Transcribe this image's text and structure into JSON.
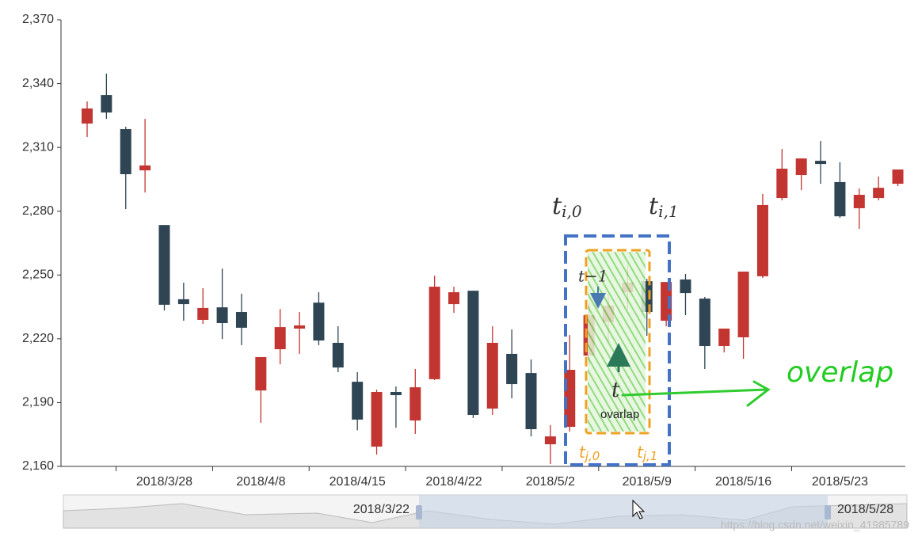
{
  "chart_data": {
    "type": "candlestick",
    "categories": [
      null,
      null,
      null,
      null,
      "2018/3/28",
      null,
      null,
      null,
      null,
      "2018/4/8",
      null,
      null,
      null,
      null,
      "2018/4/15",
      null,
      null,
      null,
      null,
      "2018/4/22",
      null,
      null,
      null,
      null,
      "2018/5/2",
      null,
      null,
      null,
      null,
      "2018/5/9",
      null,
      null,
      null,
      null,
      "2018/5/16",
      null,
      null,
      null,
      null,
      "2018/5/23",
      null,
      null,
      null
    ],
    "open": [
      2321.2,
      2334.6,
      2318.6,
      2299.2,
      2273.5,
      2238.6,
      2228.9,
      2234.8,
      2232.6,
      2195.7,
      2215.1,
      2224.8,
      2237,
      2218.1,
      2199.8,
      2169.3,
      2195,
      2181.6,
      2201,
      2236.3,
      2242.6,
      2187.2,
      2212.9,
      2203.9,
      2170.4,
      2178.6,
      2212.1,
      2227.8,
      2241.9,
      2247.1,
      2228.5,
      2247.9,
      2238.9,
      2216.6,
      2220.7,
      2249.4,
      2286.2,
      2297,
      2303.7,
      2293.7,
      2281.4,
      2286.2,
      2292.9
    ],
    "close": [
      2328.3,
      2326.4,
      2297.4,
      2301.5,
      2236,
      2236.3,
      2234.5,
      2227.4,
      2225.2,
      2211.4,
      2225.5,
      2226.3,
      2219.2,
      2206.5,
      2182,
      2195,
      2193.5,
      2197.2,
      2244.5,
      2241.9,
      2184.2,
      2218.1,
      2198.7,
      2177.5,
      2174.1,
      2205.4,
      2231.1,
      2235.6,
      2246.4,
      2232.6,
      2246.7,
      2241.5,
      2216.6,
      2224.8,
      2251.6,
      2282.9,
      2300,
      2304.8,
      2302.2,
      2277.6,
      2287.7,
      2291,
      2299.6
    ],
    "low": [
      2314.9,
      2323.4,
      2281,
      2288.8,
      2233.3,
      2228.5,
      2227,
      2219.9,
      2217,
      2180.5,
      2208,
      2212.9,
      2217,
      2204.3,
      2177,
      2165.6,
      2178.2,
      2175.3,
      2200.6,
      2232.2,
      2182.7,
      2184.2,
      2192,
      2174.1,
      2161.1,
      2176.4,
      2207.7,
      2218.5,
      2234,
      2221.4,
      2225.9,
      2231.1,
      2205.8,
      2213.6,
      2210.6,
      2248.6,
      2285.1,
      2289.9,
      2292.9,
      2276.9,
      2271.7,
      2285.1,
      2291.8
    ],
    "high": [
      2331.6,
      2344.7,
      2319.7,
      2323.4,
      2273.5,
      2246.4,
      2243.8,
      2253,
      2241.2,
      2211.4,
      2234,
      2232.6,
      2241.9,
      2225.9,
      2204.3,
      2196.1,
      2197.6,
      2205.8,
      2249.7,
      2244.5,
      2242.6,
      2225.9,
      2224.4,
      2210.3,
      2179.4,
      2221.8,
      2236.7,
      2240.8,
      2254.6,
      2248.2,
      2246.7,
      2250.5,
      2239.7,
      2224.8,
      2251.6,
      2288.1,
      2309.3,
      2304.8,
      2313,
      2303,
      2290.7,
      2296.3,
      2299.6
    ],
    "up_color": "#c23531",
    "down_color": "#2f4554",
    "ylim": [
      2160,
      2370
    ],
    "yticks": [
      {
        "value": 2160,
        "label": "2,160"
      },
      {
        "value": 2190,
        "label": "2,190"
      },
      {
        "value": 2220,
        "label": "2,220"
      },
      {
        "value": 2250,
        "label": "2,250"
      },
      {
        "value": 2280,
        "label": "2,280"
      },
      {
        "value": 2310,
        "label": "2,310"
      },
      {
        "value": 2340,
        "label": "2,340"
      },
      {
        "value": 2370,
        "label": "2,370"
      }
    ],
    "data_zoom": {
      "start_label": "2018/3/22",
      "end_label": "2018/5/28"
    }
  },
  "annotations": {
    "time_marks": [
      {
        "base": "t",
        "sub": "i,0"
      },
      {
        "base": "t",
        "sub": "i,1"
      }
    ],
    "inner_marks": [
      "t−1",
      "t"
    ],
    "inner_label": "ovarlap",
    "overlap_label": "overlap",
    "bottom_marks": [
      {
        "base": "t",
        "sub": "j,0"
      },
      {
        "base": "t",
        "sub": "j,1"
      }
    ]
  },
  "watermark": "https://blog.csdn.net/weixin_41985789"
}
